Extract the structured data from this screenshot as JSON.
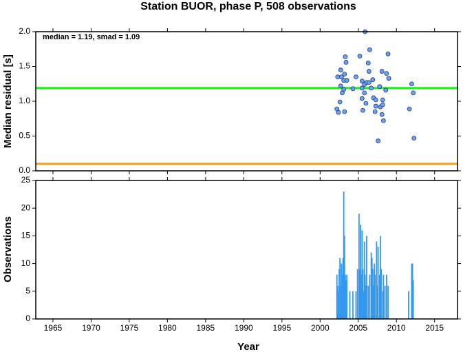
{
  "chart_data": [
    {
      "type": "scatter",
      "title": "Station BUOR, phase P, 508 observations",
      "y_label": "Median residual [s]",
      "annotation": "median = 1.19, smad = 1.09",
      "xlim": [
        1962.75,
        2018
      ],
      "ylim": [
        0,
        2
      ],
      "yticks": [
        {
          "value": 0,
          "label": "0.0"
        },
        0.5,
        {
          "value": 1,
          "label": "1.0"
        },
        1.5,
        {
          "value": 2,
          "label": "2.0"
        }
      ],
      "hlines": [
        {
          "value": 1.19,
          "color": "#22ee22"
        },
        {
          "value": 0.1,
          "color": "#f0a020"
        }
      ],
      "color": "#6fa0f0",
      "x": [
        2002.2,
        2002.4,
        2002.3,
        2002.6,
        2002.7,
        2002.7,
        2002.8,
        2002.9,
        2003.1,
        2003.2,
        2003.1,
        2003.3,
        2003.4,
        2003.5,
        2003.2,
        2004.3,
        2004.7,
        2005.2,
        2005.5,
        2005.5,
        2005.5,
        2005.6,
        2005.8,
        2005.8,
        2005.9,
        2006.0,
        2006.1,
        2006.3,
        2006.4,
        2006.4,
        2006.5,
        2006.7,
        2006.9,
        2007.0,
        2007.2,
        2007.3,
        2007.3,
        2007.6,
        2007.8,
        2007.9,
        2008.1,
        2008.1,
        2008.2,
        2008.2,
        2008.3,
        2008.6,
        2008.7,
        2008.9,
        2009.0,
        2011.7,
        2012.0,
        2012.2,
        2012.3
      ],
      "values": [
        0.89,
        0.84,
        1.35,
        0.99,
        1.22,
        1.45,
        1.35,
        1.12,
        1.3,
        1.39,
        1.17,
        1.64,
        1.56,
        1.3,
        0.85,
        1.18,
        1.35,
        1.65,
        1.19,
        1.29,
        1.04,
        0.87,
        1.12,
        1.24,
        2.0,
        0.97,
        1.27,
        1.55,
        1.43,
        1.27,
        1.74,
        1.19,
        1.31,
        1.05,
        0.85,
        0.93,
        1.02,
        0.43,
        1.21,
        0.92,
        0.81,
        1.43,
        0.95,
        1.02,
        0.72,
        1.16,
        1.4,
        1.68,
        1.33,
        0.89,
        1.25,
        1.12,
        0.47
      ]
    },
    {
      "type": "bar",
      "x_label": "Year",
      "y_label": "Observations",
      "xlim": [
        1962.75,
        2018
      ],
      "ylim": [
        0,
        25
      ],
      "xticks": [
        1965,
        1970,
        1975,
        1980,
        1985,
        1990,
        1995,
        2000,
        2005,
        2010,
        2015
      ],
      "yticks": [
        0,
        5,
        10,
        15,
        20,
        25
      ],
      "color": "#3399ee",
      "x": [
        2002.2,
        2002.3,
        2002.4,
        2002.5,
        2002.6,
        2002.7,
        2002.8,
        2002.9,
        2003.0,
        2003.1,
        2003.2,
        2003.3,
        2003.4,
        2003.5,
        2003.9,
        2004.3,
        2004.7,
        2004.9,
        2005.1,
        2005.2,
        2005.3,
        2005.4,
        2005.5,
        2005.6,
        2005.7,
        2005.8,
        2005.9,
        2006.0,
        2006.1,
        2006.3,
        2006.5,
        2006.7,
        2006.8,
        2006.9,
        2007.0,
        2007.1,
        2007.2,
        2007.4,
        2007.5,
        2007.6,
        2007.8,
        2007.9,
        2008.0,
        2008.2,
        2008.3,
        2008.5,
        2008.7,
        2008.9,
        2011.6,
        2012.0,
        2012.1,
        2012.2
      ],
      "values": [
        8,
        6,
        5,
        9,
        11,
        6,
        10,
        8,
        11,
        23,
        15,
        8,
        7,
        8,
        5,
        5,
        5,
        9,
        19,
        9,
        17,
        8,
        16,
        9,
        5,
        14,
        8,
        6,
        15,
        6,
        8,
        12,
        11,
        9,
        6,
        10,
        8,
        14,
        6,
        13,
        8,
        15,
        9,
        5,
        8,
        6,
        8,
        6,
        5,
        10,
        10,
        7
      ]
    }
  ]
}
